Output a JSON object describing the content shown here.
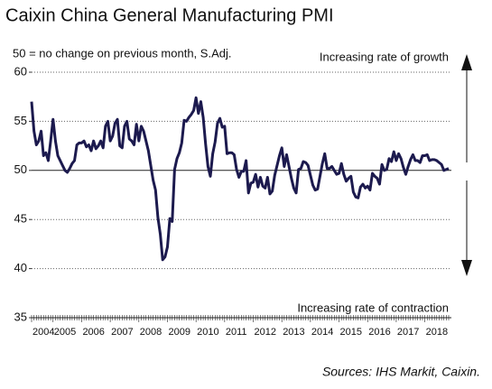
{
  "chart_data": {
    "type": "line",
    "title": "Caixin China General Manufacturing PMI",
    "subtitle": "50 = no change on previous month, S.Adj.",
    "annotation_top": "Increasing rate of growth",
    "annotation_bottom": "Increasing rate of contraction",
    "source": "Sources: IHS Markit, Caixin.",
    "categories": [
      "2004",
      null,
      null,
      null,
      null,
      null,
      null,
      null,
      null,
      "2005",
      null,
      null,
      null,
      null,
      null,
      null,
      null,
      null,
      null,
      null,
      null,
      "2006",
      null,
      null,
      null,
      null,
      null,
      null,
      null,
      null,
      null,
      null,
      null,
      "2007",
      null,
      null,
      null,
      null,
      null,
      null,
      null,
      null,
      null,
      null,
      null,
      "2008",
      null,
      null,
      null,
      null,
      null,
      null,
      null,
      null,
      null,
      null,
      null,
      "2009",
      null,
      null,
      null,
      null,
      null,
      null,
      null,
      null,
      null,
      null,
      null,
      "2010",
      null,
      null,
      null,
      null,
      null,
      null,
      null,
      null,
      null,
      null,
      null,
      "2011",
      null,
      null,
      null,
      null,
      null,
      null,
      null,
      null,
      null,
      null,
      null,
      "2012",
      null,
      null,
      null,
      null,
      null,
      null,
      null,
      null,
      null,
      null,
      null,
      "2013",
      null,
      null,
      null,
      null,
      null,
      null,
      null,
      null,
      null,
      null,
      null,
      "2014",
      null,
      null,
      null,
      null,
      null,
      null,
      null,
      null,
      null,
      null,
      null,
      "2015",
      null,
      null,
      null,
      null,
      null,
      null,
      null,
      null,
      null,
      null,
      null,
      "2016",
      null,
      null,
      null,
      null,
      null,
      null,
      null,
      null,
      null,
      null,
      null,
      "2017",
      null,
      null,
      null,
      null,
      null,
      null,
      null,
      null,
      null,
      null,
      null,
      "2018",
      null,
      null,
      null,
      null,
      null,
      null,
      null,
      null,
      null,
      null
    ],
    "values": [
      57.0,
      54.0,
      52.6,
      53.0,
      54.0,
      51.5,
      51.8,
      51.0,
      53.0,
      55.2,
      53.0,
      51.5,
      51.0,
      50.5,
      50.0,
      49.8,
      50.2,
      50.7,
      51.0,
      52.6,
      52.8,
      52.8,
      53.0,
      52.4,
      52.6,
      52.0,
      53.0,
      52.2,
      52.5,
      53.0,
      52.3,
      54.5,
      55.0,
      53.0,
      53.5,
      54.8,
      55.2,
      52.5,
      52.3,
      54.5,
      55.0,
      53.2,
      53.0,
      52.6,
      54.7,
      53.0,
      54.5,
      54.0,
      53.0,
      52.0,
      50.5,
      49.0,
      48.0,
      45.2,
      43.5,
      40.9,
      41.2,
      42.2,
      45.1,
      44.8,
      50.1,
      51.2,
      51.8,
      52.8,
      55.1,
      55.0,
      55.4,
      55.7,
      56.1,
      57.4,
      55.8,
      57.0,
      55.4,
      52.7,
      50.4,
      49.4,
      51.7,
      52.9,
      54.8,
      55.3,
      54.4,
      54.5,
      51.7,
      51.8,
      51.8,
      51.6,
      50.1,
      49.3,
      49.9,
      49.9,
      51.0,
      47.7,
      48.7,
      48.8,
      49.6,
      48.3,
      49.3,
      48.4,
      48.2,
      49.3,
      47.6,
      47.9,
      49.5,
      50.5,
      51.5,
      52.3,
      50.4,
      51.6,
      50.4,
      49.2,
      48.2,
      47.7,
      50.1,
      50.2,
      50.9,
      50.8,
      50.5,
      49.5,
      48.5,
      48.0,
      48.1,
      49.4,
      50.7,
      51.7,
      50.2,
      50.2,
      50.4,
      50.0,
      49.6,
      49.7,
      50.7,
      49.6,
      48.9,
      49.2,
      49.4,
      47.8,
      47.3,
      47.2,
      48.3,
      48.6,
      48.2,
      48.4,
      48.0,
      49.7,
      49.4,
      49.2,
      48.6,
      50.6,
      50.0,
      50.1,
      51.2,
      50.9,
      51.9,
      51.0,
      51.7,
      51.2,
      50.3,
      49.6,
      50.4,
      51.1,
      51.6,
      51.0,
      51.0,
      50.8,
      51.5,
      51.5,
      51.6,
      51.0,
      51.1,
      51.1,
      51.0,
      50.8,
      50.6,
      50.0,
      50.1,
      50.2
    ],
    "color": "#1c1a4e",
    "ylim": [
      35,
      60
    ],
    "yticks": [
      35,
      40,
      45,
      50,
      55,
      60
    ],
    "reference_line": 50,
    "grid": true
  }
}
